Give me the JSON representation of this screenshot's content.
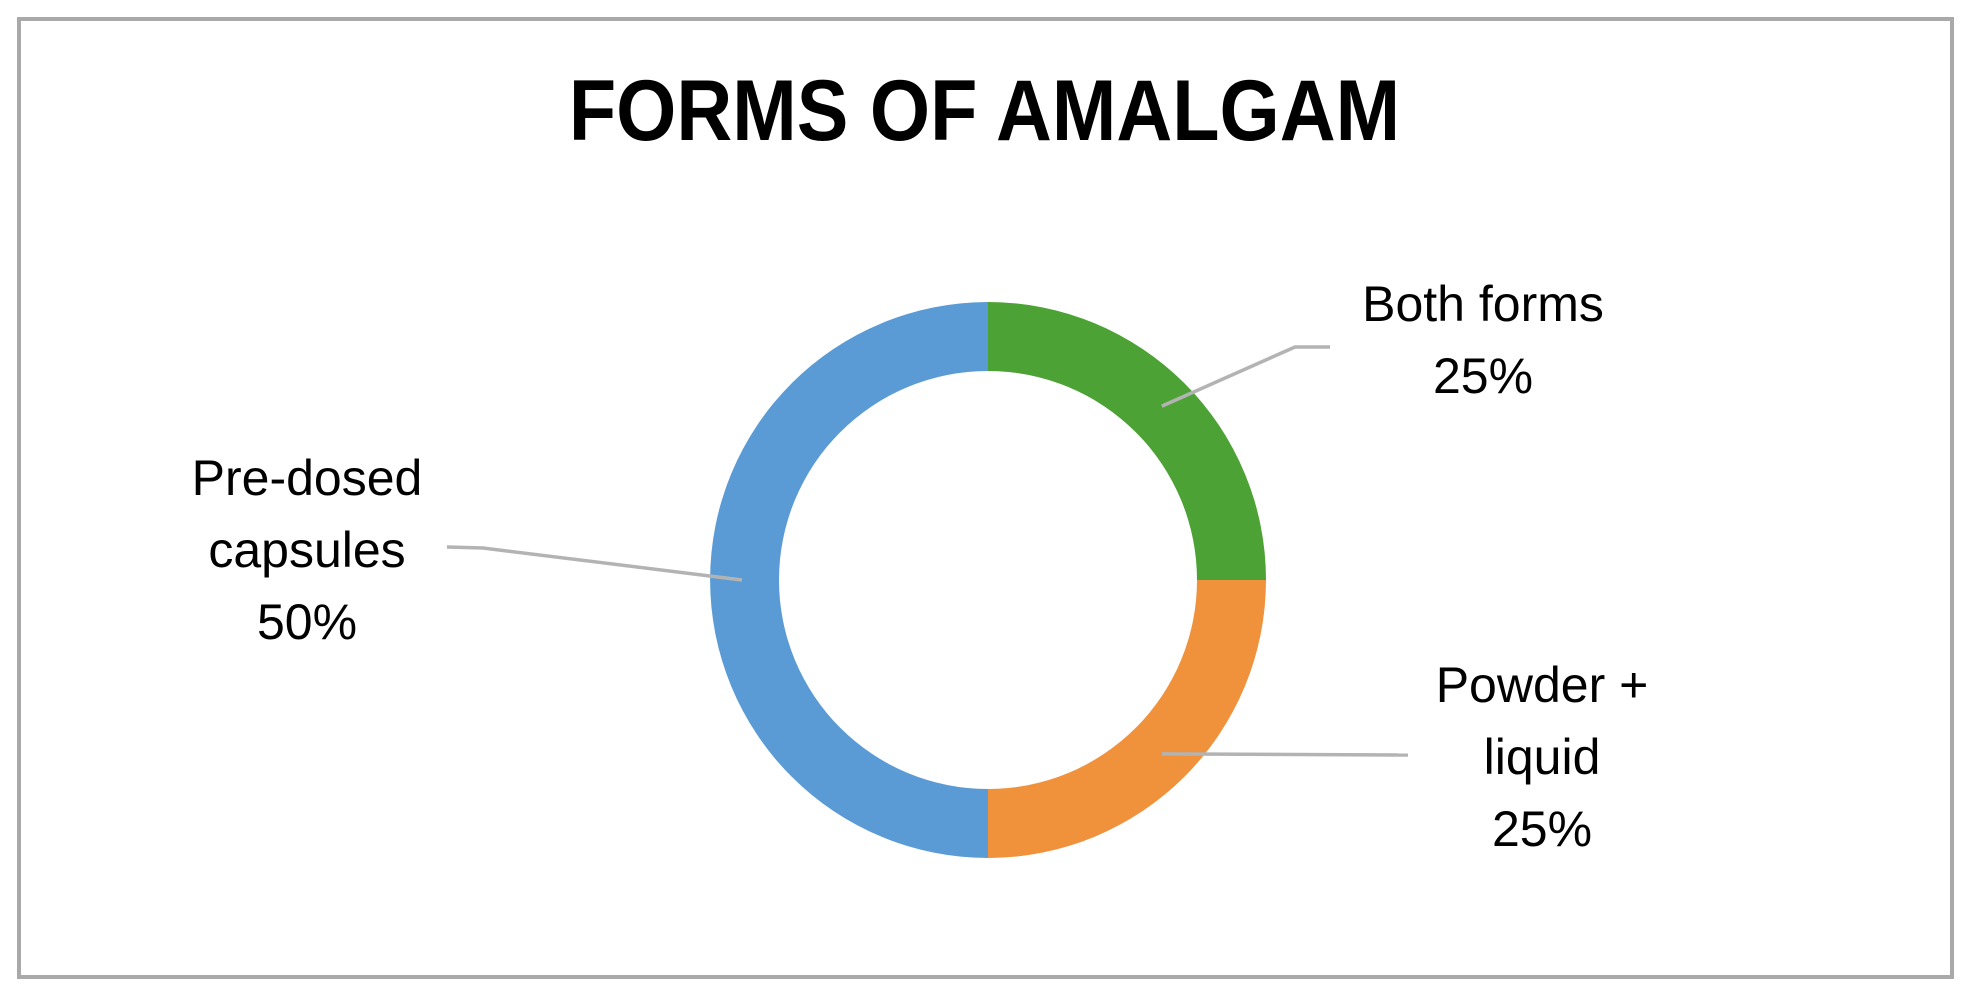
{
  "frame": {
    "border_color": "#a9a9a9",
    "background_color": "#ffffff"
  },
  "chart_data": {
    "type": "pie",
    "subtype": "donut",
    "title": "FORMS OF AMALGAM",
    "categories": [
      "Both forms",
      "Powder + liquid",
      "Pre-dosed capsules"
    ],
    "values": [
      25,
      25,
      50
    ],
    "colors": [
      "#4ca234",
      "#f0913c",
      "#5b9bd5"
    ],
    "start_angle_deg": 0,
    "direction": "clockwise",
    "hole_ratio": 0.75,
    "legend_position": "none",
    "grid": false,
    "text_color": "#000000",
    "leader_line_color": "#b3b3b3",
    "labels": [
      {
        "category": "Both forms",
        "value_pct": "25%",
        "lines": [
          "Both forms",
          "25%"
        ]
      },
      {
        "category": "Powder + liquid",
        "value_pct": "25%",
        "lines": [
          "Powder +",
          "liquid",
          "25%"
        ]
      },
      {
        "category": "Pre-dosed capsules",
        "value_pct": "50%",
        "lines": [
          "Pre-dosed",
          "capsules",
          "50%"
        ]
      }
    ]
  }
}
